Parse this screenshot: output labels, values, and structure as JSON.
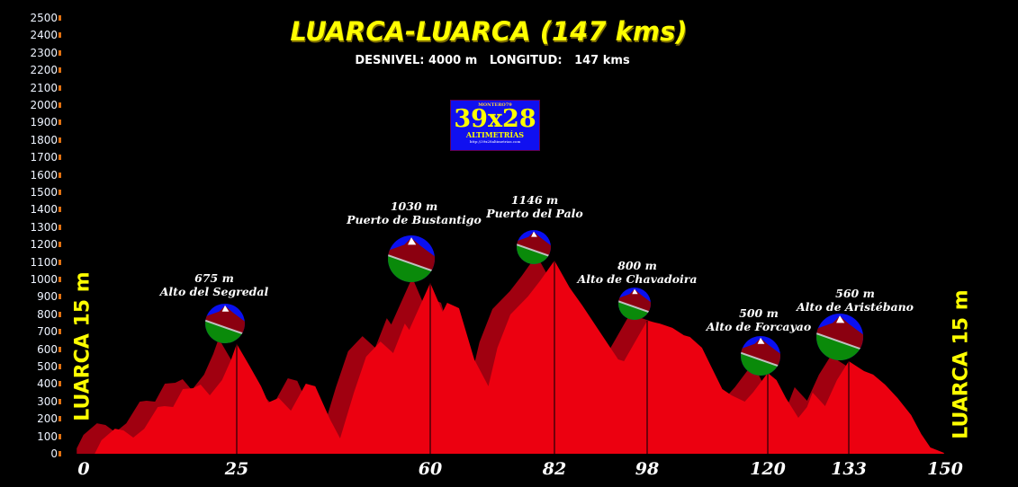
{
  "chart_data": {
    "type": "area",
    "title": "LUARCA-LUARCA (147 kms)",
    "subtitle": "DESNIVEL: 4000 m   LONGITUD:   147 kms",
    "xlabel": "",
    "ylabel": "",
    "ylim": [
      0,
      2500
    ],
    "xlim": [
      0,
      150
    ],
    "y_ticks": [
      0,
      100,
      200,
      300,
      400,
      500,
      600,
      700,
      800,
      900,
      1000,
      1100,
      1200,
      1300,
      1400,
      1500,
      1600,
      1700,
      1800,
      1900,
      2000,
      2100,
      2200,
      2300,
      2400,
      2500
    ],
    "x_ticks": [
      0,
      25,
      60,
      82,
      98,
      120,
      133,
      150
    ],
    "grid": false,
    "start_label": "LUARCA 15 m",
    "end_label": "LUARCA 15 m",
    "profile": {
      "km": [
        1.8,
        2.9,
        5.1,
        6.5,
        8.1,
        9.9,
        12.1,
        13.2,
        14.6,
        16.2,
        17.9,
        19.1,
        20.6,
        22.6,
        24.1,
        25,
        27.3,
        29.4,
        30.7,
        32.6,
        34.8,
        37.5,
        39.2,
        41.9,
        43.7,
        46.2,
        48.4,
        51.0,
        53.3,
        55.4,
        56.2,
        60,
        62.2,
        63.0,
        65.1,
        67.8,
        70.3,
        71.9,
        74.2,
        77.3,
        79.4,
        82,
        84.6,
        86.8,
        89.9,
        93.0,
        94.0,
        98,
        100.3,
        102.6,
        104.7,
        105.8,
        108.0,
        109.6,
        111.7,
        113.4,
        115.8,
        117.3,
        120,
        121.4,
        122.9,
        124.9,
        126.3,
        127.2,
        129.2,
        131.1,
        133,
        135.7,
        137.3,
        139.4,
        141.6,
        144.0,
        145.8,
        147.4,
        149.8
      ],
      "elev": [
        0,
        77,
        144,
        134,
        93,
        144,
        268,
        273,
        268,
        371,
        376,
        397,
        335,
        423,
        541,
        630,
        505,
        387,
        294,
        320,
        247,
        402,
        387,
        196,
        88,
        351,
        557,
        644,
        577,
        747,
        711,
        980,
        814,
        866,
        835,
        541,
        387,
        608,
        799,
        902,
        990,
        1108,
        954,
        851,
        696,
        541,
        531,
        763,
        747,
        722,
        680,
        670,
        608,
        505,
        371,
        335,
        299,
        351,
        464,
        423,
        320,
        206,
        268,
        351,
        273,
        423,
        531,
        474,
        454,
        397,
        320,
        222,
        113,
        36,
        5
      ]
    },
    "peaks": [
      {
        "km": 25,
        "elev_label": "675 m",
        "name": "Alto del Segredal"
      },
      {
        "km": 60,
        "elev_label": "1030 m",
        "name": "Puerto de Bustantigo"
      },
      {
        "km": 82,
        "elev_label": "1146 m",
        "name": "Puerto del Palo"
      },
      {
        "km": 98,
        "elev_label": "800 m",
        "name": "Alto de Chavadoira"
      },
      {
        "km": 120,
        "elev_label": "500 m",
        "name": "Alto de Forcayao"
      },
      {
        "km": 133,
        "elev_label": "560 m",
        "name": "Alto de Aristébano"
      }
    ],
    "colors": {
      "profile": "#ec0010",
      "profile_back": "#a00010",
      "title": "#ffff00"
    }
  },
  "logo": {
    "top": "MONTERO79",
    "big": "39x28",
    "bottom": "ALTIMETRÍAS",
    "url": "http://39x28altimetrias.com"
  }
}
